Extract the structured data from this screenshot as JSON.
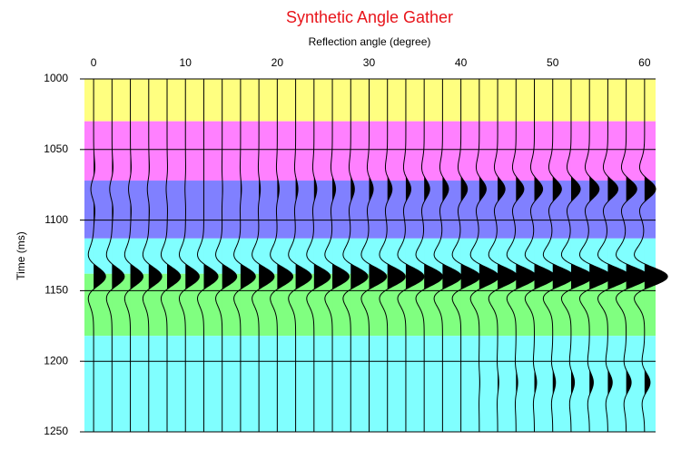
{
  "chart_data": {
    "type": "wiggle",
    "title": "Synthetic Angle Gather",
    "x_label": "Reflection angle (degree)",
    "y_label": "Time (ms)",
    "xlim": [
      -1,
      61.2
    ],
    "xticks": [
      0,
      10,
      20,
      30,
      40,
      50,
      60
    ],
    "ylim": [
      1000,
      1250
    ],
    "yticks": [
      1000,
      1050,
      1100,
      1150,
      1200,
      1250
    ],
    "y_inverted": true,
    "grid": true,
    "trace_color": "#000000",
    "x": [
      0,
      2,
      4,
      6,
      8,
      10,
      12,
      14,
      16,
      18,
      20,
      22,
      24,
      26,
      28,
      30,
      32,
      34,
      36,
      38,
      40,
      42,
      44,
      46,
      48,
      50,
      52,
      54,
      56,
      58,
      60
    ],
    "layers": [
      {
        "top": 1000,
        "bottom": 1030,
        "color": "#ffff80"
      },
      {
        "top": 1030,
        "bottom": 1072,
        "color": "#ff80ff"
      },
      {
        "top": 1072,
        "bottom": 1113,
        "color": "#8080ff"
      },
      {
        "top": 1113,
        "bottom": 1138,
        "color": "#80ffff"
      },
      {
        "top": 1138,
        "bottom": 1182,
        "color": "#80ff80"
      },
      {
        "top": 1182,
        "bottom": 1250,
        "color": "#80ffff"
      }
    ],
    "events": [
      {
        "time": 1078,
        "amplitudes": [
          -0.3,
          -0.25,
          -0.2,
          -0.15,
          -0.1,
          -0.05,
          0,
          0.05,
          0.1,
          0.15,
          0.2,
          0.25,
          0.3,
          0.35,
          0.4,
          0.45,
          0.5,
          0.55,
          0.6,
          0.65,
          0.7,
          0.75,
          0.8,
          0.85,
          0.9,
          0.95,
          1.0,
          1.05,
          1.1,
          1.15,
          1.2
        ]
      },
      {
        "time": 1140,
        "amplitudes": [
          1.3,
          1.34,
          1.38,
          1.42,
          1.46,
          1.5,
          1.54,
          1.58,
          1.62,
          1.66,
          1.7,
          1.74,
          1.78,
          1.82,
          1.86,
          1.9,
          1.94,
          1.98,
          2.02,
          2.06,
          2.1,
          2.14,
          2.18,
          2.22,
          2.26,
          2.3,
          2.34,
          2.38,
          2.42,
          2.46,
          2.5
        ]
      },
      {
        "time": 1215,
        "amplitudes": [
          0,
          0,
          0,
          0,
          0,
          0,
          0,
          0,
          0,
          0,
          0,
          0,
          0,
          0,
          0,
          0,
          0,
          0,
          0,
          0,
          0,
          0.06,
          0.12,
          0.18,
          0.24,
          0.3,
          0.36,
          0.42,
          0.48,
          0.54,
          0.6
        ]
      }
    ]
  }
}
